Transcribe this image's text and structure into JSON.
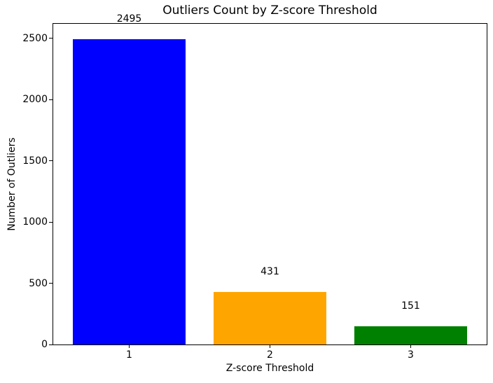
{
  "chart_data": {
    "type": "bar",
    "title": "Outliers Count by Z-score Threshold",
    "xlabel": "Z-score Threshold",
    "ylabel": "Number of Outliers",
    "categories": [
      "1",
      "2",
      "3"
    ],
    "x_positions": [
      1,
      2,
      3
    ],
    "values": [
      2495,
      431,
      151
    ],
    "bar_value_labels": [
      "2495",
      "431",
      "151"
    ],
    "bar_colors": [
      "#0000ff",
      "#ffa500",
      "#008000"
    ],
    "bar_width": 0.8,
    "yticks": [
      0,
      500,
      1000,
      1500,
      2000,
      2500
    ],
    "ytick_labels": [
      "0",
      "500",
      "1000",
      "1500",
      "2000",
      "2500"
    ],
    "ylim": [
      0,
      2620
    ],
    "xlim": [
      0.46,
      3.54
    ],
    "grid": false,
    "legend": null,
    "background_color": "#ffffff",
    "spine_color": "#000000"
  }
}
